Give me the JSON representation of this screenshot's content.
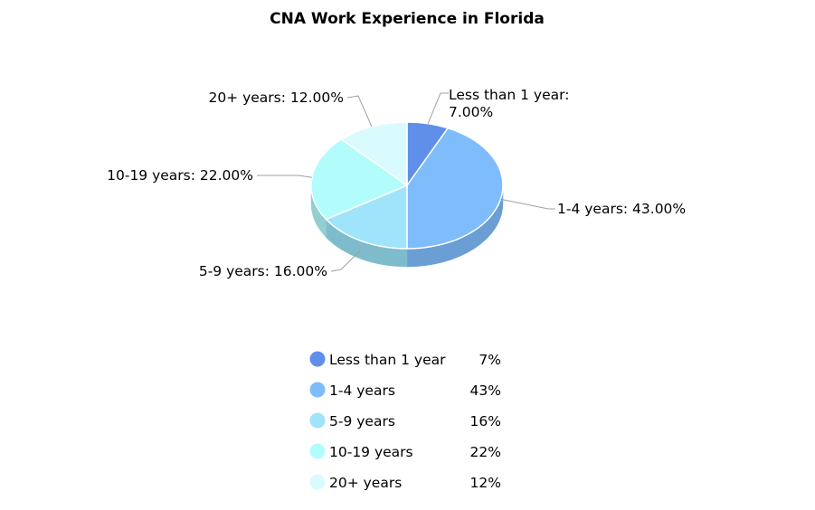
{
  "chart_data": {
    "type": "pie",
    "title": "CNA Work Experience in Florida",
    "slices": [
      {
        "name": "Less than 1 year",
        "value": 7,
        "label": "Less than 1 year: 7.00%",
        "legend_value": "7%",
        "color": "#5f8fe8"
      },
      {
        "name": "1-4 years",
        "value": 43,
        "label": "1-4 years: 43.00%",
        "legend_value": "43%",
        "color": "#7fbcfb"
      },
      {
        "name": "5-9 years",
        "value": 16,
        "label": "5-9 years: 16.00%",
        "legend_value": "16%",
        "color": "#9fe4fa"
      },
      {
        "name": "10-19 years",
        "value": 22,
        "label": "10-19 years: 22.00%",
        "legend_value": "22%",
        "color": "#b3fcfc"
      },
      {
        "name": "20+ years",
        "value": 12,
        "label": "20+ years: 12.00%",
        "legend_value": "12%",
        "color": "#dafbfd"
      }
    ],
    "side_colors": [
      "#4f78c4",
      "#6a9ed4",
      "#7fbccb",
      "#92cfcf",
      "#b3d2d4"
    ],
    "legend_position": "bottom"
  }
}
